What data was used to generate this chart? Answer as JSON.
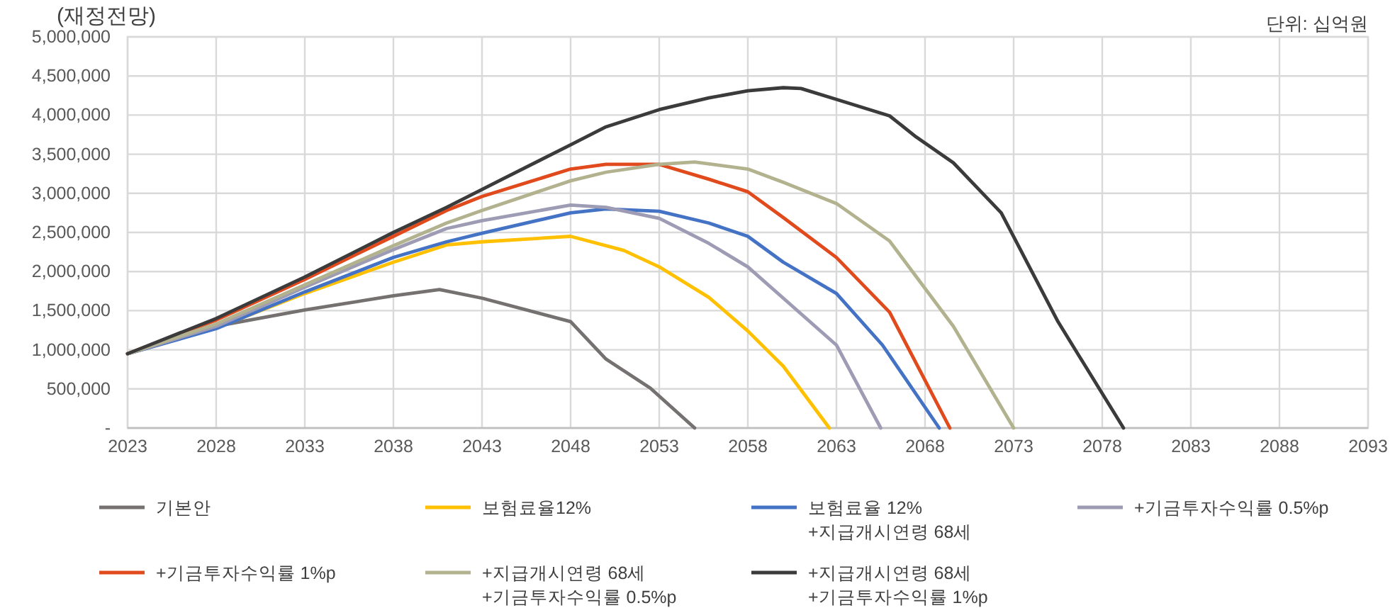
{
  "chart_data": {
    "type": "line",
    "title": "(재정전망)",
    "annotations": [
      "단위: 십억원"
    ],
    "xlim": [
      2023,
      2093
    ],
    "xticks": [
      2023,
      2028,
      2033,
      2038,
      2043,
      2048,
      2053,
      2058,
      2063,
      2068,
      2073,
      2078,
      2083,
      2088,
      2093
    ],
    "ylim": [
      0,
      5000000
    ],
    "yticks": [
      {
        "value": 0,
        "label": "-"
      },
      {
        "value": 500000,
        "label": "500,000"
      },
      {
        "value": 1000000,
        "label": "1,000,000"
      },
      {
        "value": 1500000,
        "label": "1,500,000"
      },
      {
        "value": 2000000,
        "label": "2,000,000"
      },
      {
        "value": 2500000,
        "label": "2,500,000"
      },
      {
        "value": 3000000,
        "label": "3,000,000"
      },
      {
        "value": 3500000,
        "label": "3,500,000"
      },
      {
        "value": 4000000,
        "label": "4,000,000"
      },
      {
        "value": 4500000,
        "label": "4,500,000"
      },
      {
        "value": 5000000,
        "label": "5,000,000"
      }
    ],
    "grid": true,
    "legend": "bottom",
    "marker": "none",
    "line_style": "solid",
    "series": [
      {
        "name": "기본안",
        "color": "#767171",
        "x": [
          2023,
          2028,
          2033,
          2038,
          2040.6,
          2043,
          2048,
          2050,
          2052.5,
          2055
        ],
        "values": [
          950000,
          1300000,
          1510000,
          1690000,
          1770000,
          1660000,
          1360000,
          880000,
          510000,
          0
        ]
      },
      {
        "name": "보험료율12%",
        "color": "#ffc000",
        "x": [
          2023,
          2028,
          2033,
          2038,
          2041,
          2043,
          2048,
          2051,
          2053,
          2055.8,
          2058,
          2060,
          2062.6
        ],
        "values": [
          950000,
          1280000,
          1720000,
          2120000,
          2340000,
          2380000,
          2450000,
          2270000,
          2060000,
          1670000,
          1240000,
          790000,
          0
        ]
      },
      {
        "name": "보험료율 12%\n+지급개시연령 68세",
        "color": "#4472c4",
        "x": [
          2023,
          2028,
          2033,
          2038,
          2041,
          2043,
          2048,
          2050,
          2053,
          2055.8,
          2058,
          2060,
          2063,
          2065.6,
          2068.8
        ],
        "values": [
          950000,
          1270000,
          1740000,
          2180000,
          2380000,
          2490000,
          2750000,
          2800000,
          2770000,
          2620000,
          2450000,
          2120000,
          1720000,
          1060000,
          0
        ]
      },
      {
        "name": "+기금투자수익률 0.5%p",
        "color": "#9e9cb4",
        "x": [
          2023,
          2028,
          2033,
          2038,
          2041,
          2043,
          2048,
          2050,
          2053,
          2055.8,
          2058,
          2060,
          2063,
          2065.5
        ],
        "values": [
          950000,
          1300000,
          1800000,
          2280000,
          2550000,
          2650000,
          2850000,
          2820000,
          2680000,
          2360000,
          2060000,
          1660000,
          1060000,
          0
        ]
      },
      {
        "name": "+기금투자수익률 1%p",
        "color": "#e04a1c",
        "x": [
          2023,
          2028,
          2033,
          2038,
          2041,
          2043,
          2048,
          2050,
          2053,
          2055.8,
          2058,
          2060,
          2063,
          2066,
          2069.4
        ],
        "values": [
          950000,
          1380000,
          1900000,
          2450000,
          2780000,
          2960000,
          3310000,
          3370000,
          3370000,
          3180000,
          3020000,
          2690000,
          2180000,
          1480000,
          0
        ]
      },
      {
        "name": "+지급개시연령 68세\n+기금투자수익률 0.5%p",
        "color": "#b2b28f",
        "x": [
          2023,
          2028,
          2033,
          2038,
          2041,
          2043,
          2048,
          2050,
          2053,
          2055,
          2058,
          2060,
          2063,
          2066,
          2069.6,
          2073
        ],
        "values": [
          950000,
          1330000,
          1830000,
          2330000,
          2620000,
          2780000,
          3160000,
          3270000,
          3370000,
          3400000,
          3310000,
          3140000,
          2870000,
          2390000,
          1300000,
          0
        ]
      },
      {
        "name": "+지급개시연령 68세\n+기금투자수익률 1%p",
        "color": "#3b3b3b",
        "x": [
          2023,
          2028,
          2033,
          2038,
          2041,
          2043,
          2048,
          2050,
          2053,
          2055.8,
          2058,
          2060,
          2061,
          2063,
          2066,
          2067.5,
          2069.6,
          2072.3,
          2075.5,
          2079.2
        ],
        "values": [
          950000,
          1400000,
          1930000,
          2500000,
          2820000,
          3050000,
          3620000,
          3850000,
          4070000,
          4220000,
          4310000,
          4350000,
          4340000,
          4200000,
          3990000,
          3720000,
          3390000,
          2750000,
          1360000,
          0
        ]
      }
    ]
  }
}
